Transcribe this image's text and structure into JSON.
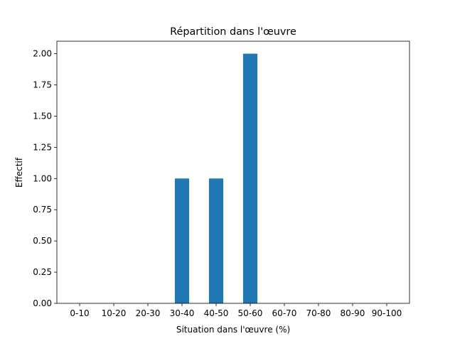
{
  "chart_data": {
    "type": "bar",
    "title": "Répartition dans l'œuvre",
    "xlabel": "Situation dans l'œuvre (%)",
    "ylabel": "Effectif",
    "categories": [
      "0-10",
      "10-20",
      "20-30",
      "30-40",
      "40-50",
      "50-60",
      "60-70",
      "70-80",
      "80-90",
      "90-100"
    ],
    "values": [
      0,
      0,
      0,
      1,
      1,
      2,
      0,
      0,
      0,
      0
    ],
    "color": "#1f77b4",
    "ylim": [
      0,
      2.1
    ],
    "yticks": [
      {
        "value": 0,
        "label": "0.00"
      },
      {
        "value": 0.25,
        "label": "0.25"
      },
      {
        "value": 0.5,
        "label": "0.50"
      },
      {
        "value": 0.75,
        "label": "0.75"
      },
      {
        "value": 1,
        "label": "1.00"
      },
      {
        "value": 1.25,
        "label": "1.25"
      },
      {
        "value": 1.5,
        "label": "1.50"
      },
      {
        "value": 1.75,
        "label": "1.75"
      },
      {
        "value": 2,
        "label": "2.00"
      }
    ],
    "grid": false
  }
}
